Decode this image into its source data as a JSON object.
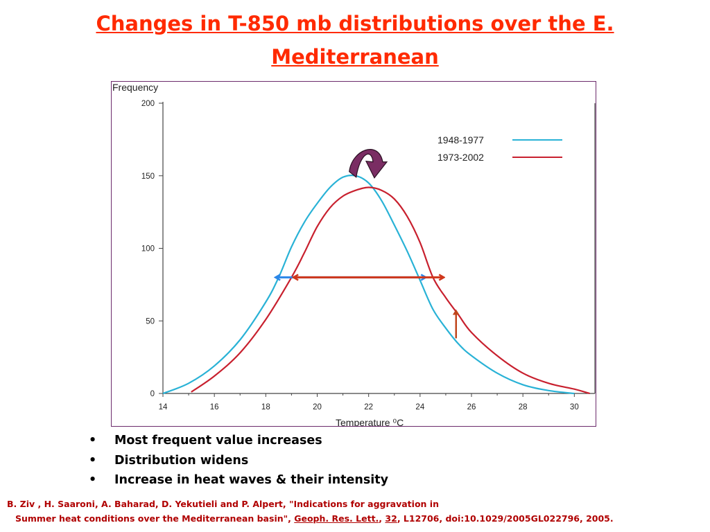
{
  "title": {
    "line1": "Changes in T-850 mb distributions over the E. ",
    "line2": "Mediterranean",
    "color": "#ff2a00"
  },
  "chart_data": {
    "type": "line",
    "xlabel": "Temperature ⁰C",
    "ylabel": "Frequency",
    "xlim": [
      14,
      30.8
    ],
    "ylim": [
      0,
      200
    ],
    "x_ticks": [
      14,
      16,
      18,
      20,
      22,
      24,
      26,
      28,
      30
    ],
    "y_ticks": [
      0,
      50,
      100,
      150,
      200
    ],
    "grid": false,
    "legend_position": "top-right",
    "series": [
      {
        "name": "1948-1977",
        "color": "#29b2d6",
        "points": [
          [
            14,
            0
          ],
          [
            15,
            7
          ],
          [
            16,
            19
          ],
          [
            17,
            37
          ],
          [
            18,
            63
          ],
          [
            18.5,
            80
          ],
          [
            19,
            101
          ],
          [
            19.5,
            118
          ],
          [
            20,
            131
          ],
          [
            20.5,
            142
          ],
          [
            21,
            149
          ],
          [
            21.5,
            150
          ],
          [
            22,
            145
          ],
          [
            22.5,
            133
          ],
          [
            23,
            116
          ],
          [
            23.5,
            98
          ],
          [
            24,
            78
          ],
          [
            24.5,
            58
          ],
          [
            25,
            45
          ],
          [
            25.5,
            34
          ],
          [
            26,
            26
          ],
          [
            27,
            14
          ],
          [
            28,
            6
          ],
          [
            29,
            2
          ],
          [
            30,
            0
          ]
        ]
      },
      {
        "name": "1973-2002",
        "color": "#c8202e",
        "points": [
          [
            15.1,
            1
          ],
          [
            16,
            12
          ],
          [
            17,
            28
          ],
          [
            18,
            51
          ],
          [
            19,
            80
          ],
          [
            19.5,
            97
          ],
          [
            20,
            115
          ],
          [
            20.5,
            128
          ],
          [
            21,
            136
          ],
          [
            21.5,
            140
          ],
          [
            22,
            142
          ],
          [
            22.5,
            140
          ],
          [
            23,
            134
          ],
          [
            23.5,
            122
          ],
          [
            24,
            104
          ],
          [
            24.5,
            80
          ],
          [
            25,
            66
          ],
          [
            25.5,
            54
          ],
          [
            26,
            42
          ],
          [
            27,
            26
          ],
          [
            28,
            14
          ],
          [
            29,
            7
          ],
          [
            30,
            3
          ],
          [
            30.6,
            0
          ]
        ]
      }
    ],
    "annotations": [
      {
        "kind": "double-arrow",
        "color": "#2b86e8",
        "x_from": 18.4,
        "x_to": 24.2,
        "y": 80
      },
      {
        "kind": "double-arrow",
        "color": "#d0361a",
        "x_from": 19.1,
        "x_to": 24.9,
        "y": 80
      },
      {
        "kind": "arrow-up",
        "color": "#c0451c",
        "x": 25.4,
        "y_from": 38,
        "y_to": 57
      },
      {
        "kind": "curved-arrow",
        "color": "#7a2d63",
        "x_from": 21.3,
        "x_to": 21.9,
        "y": 150
      }
    ]
  },
  "bullets": [
    "Most frequent value increases",
    "Distribution widens",
    "Increase in heat waves & their intensity"
  ],
  "bullet_symbol": "•",
  "citation": {
    "line1": "B. Ziv , H. Saaroni, A. Baharad, D. Yekutieli and P. Alpert, \"Indications for aggravation in",
    "line2_a": "Summer heat conditions over the Mediterranean basin\", ",
    "journal": "Geoph. Res. Lett.",
    "comma1": ", ",
    "volume": "32",
    "rest": ", L12706, doi:10.1029/2005GL022796, 2005.",
    "color": "#b00000"
  }
}
